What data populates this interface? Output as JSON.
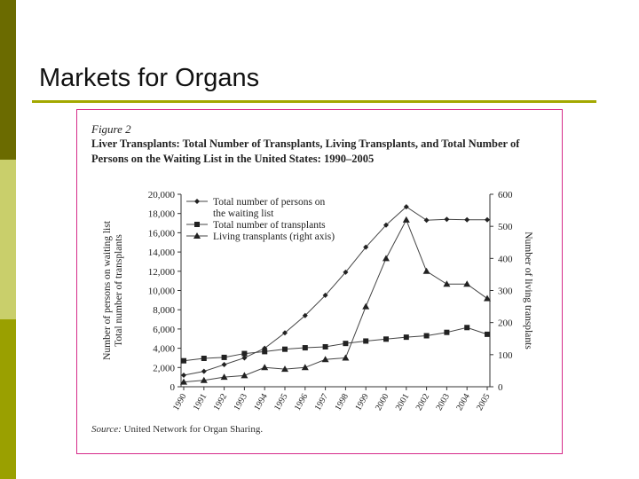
{
  "slide": {
    "title": "Markets for Organs"
  },
  "figure": {
    "label": "Figure 2",
    "caption": "Liver Transplants: Total Number of Transplants, Living Transplants, and Total Number of Persons on the Waiting List in the United States: 1990–2005",
    "source_prefix": "Source:",
    "source_text": "United Network for Organ Sharing."
  },
  "chart_data": {
    "type": "line",
    "title": "Liver Transplants: Total Number of Transplants, Living Transplants, and Total Number of Persons on the Waiting List in the United States: 1990–2005",
    "x": [
      "1990",
      "1991",
      "1992",
      "1993",
      "1994",
      "1995",
      "1996",
      "1997",
      "1998",
      "1999",
      "2000",
      "2001",
      "2002",
      "2003",
      "2004",
      "2005"
    ],
    "ylabel": "Number of persons on waiting list\nTotal number of transplants",
    "y2label": "Number of living transplants",
    "ylim": [
      0,
      20000
    ],
    "y2lim": [
      0,
      600
    ],
    "yticks": [
      "0",
      "2,000",
      "4,000",
      "6,000",
      "8,000",
      "10,000",
      "12,000",
      "14,000",
      "16,000",
      "18,000",
      "20,000"
    ],
    "y2ticks": [
      "0",
      "100",
      "200",
      "300",
      "400",
      "500",
      "600"
    ],
    "legend_position": "top-left",
    "series": [
      {
        "name": "Total number of persons on the waiting list",
        "legend_lines": [
          "Total number of persons on",
          "the waiting list"
        ],
        "marker": "diamond",
        "axis": "left",
        "values": [
          1200,
          1600,
          2300,
          3000,
          4000,
          5600,
          7400,
          9500,
          11900,
          14500,
          16800,
          18700,
          17300,
          17400,
          17350,
          17350
        ]
      },
      {
        "name": "Total number of transplants",
        "legend_lines": [
          "Total number of transplants"
        ],
        "marker": "square",
        "axis": "left",
        "values": [
          2700,
          2950,
          3050,
          3450,
          3650,
          3900,
          4050,
          4150,
          4500,
          4750,
          4950,
          5150,
          5300,
          5650,
          6150,
          5450
        ]
      },
      {
        "name": "Living transplants (right axis)",
        "legend_lines": [
          "Living transplants (right axis)"
        ],
        "marker": "triangle",
        "axis": "right",
        "values": [
          15,
          20,
          30,
          35,
          60,
          55,
          60,
          85,
          90,
          250,
          400,
          520,
          360,
          320,
          320,
          275
        ]
      }
    ]
  }
}
